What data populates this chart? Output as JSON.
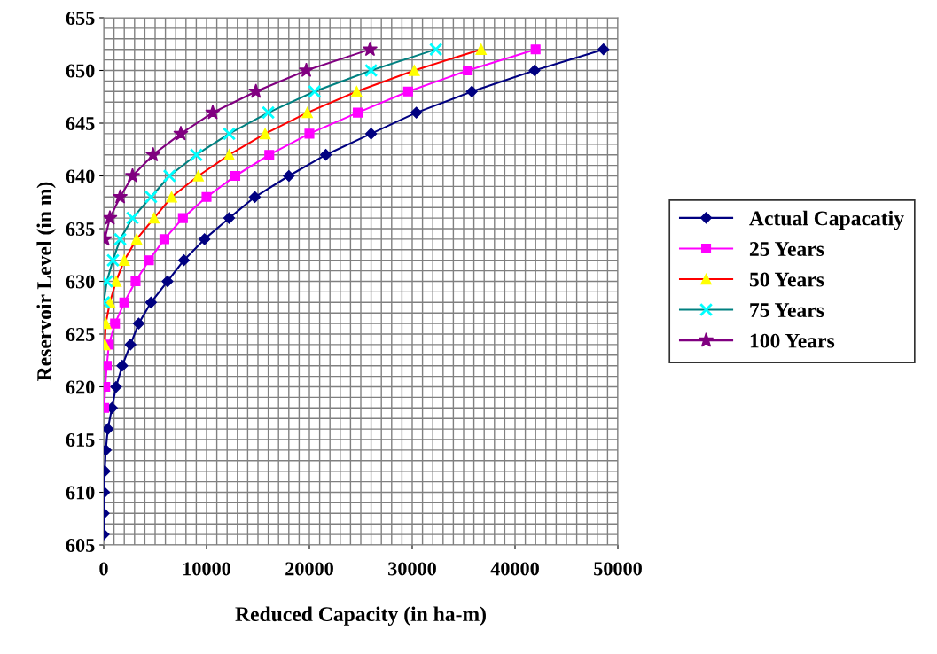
{
  "chart_data": {
    "type": "line",
    "xlabel": "Reduced Capacity (in ha-m)",
    "ylabel": "Reservoir Level (in m)",
    "xlim": [
      0,
      50000
    ],
    "ylim": [
      605,
      655
    ],
    "xticks": [
      0,
      {
        "value": 1000,
        "label": null
      },
      {
        "value": 2000,
        "label": null
      },
      {
        "value": 3000,
        "label": null
      },
      {
        "value": 4000,
        "label": null
      },
      {
        "value": 5000,
        "label": null
      },
      {
        "value": 6000,
        "label": null
      },
      {
        "value": 7000,
        "label": null
      },
      {
        "value": 8000,
        "label": null
      },
      {
        "value": 9000,
        "label": null
      },
      10000,
      {
        "value": 11000,
        "label": null
      },
      {
        "value": 12000,
        "label": null
      },
      {
        "value": 13000,
        "label": null
      },
      {
        "value": 14000,
        "label": null
      },
      {
        "value": 15000,
        "label": null
      },
      {
        "value": 16000,
        "label": null
      },
      {
        "value": 17000,
        "label": null
      },
      {
        "value": 18000,
        "label": null
      },
      {
        "value": 19000,
        "label": null
      },
      20000,
      {
        "value": 21000,
        "label": null
      },
      {
        "value": 22000,
        "label": null
      },
      {
        "value": 23000,
        "label": null
      },
      {
        "value": 24000,
        "label": null
      },
      {
        "value": 25000,
        "label": null
      },
      {
        "value": 26000,
        "label": null
      },
      {
        "value": 27000,
        "label": null
      },
      {
        "value": 28000,
        "label": null
      },
      {
        "value": 29000,
        "label": null
      },
      30000,
      {
        "value": 31000,
        "label": null
      },
      {
        "value": 32000,
        "label": null
      },
      {
        "value": 33000,
        "label": null
      },
      {
        "value": 34000,
        "label": null
      },
      {
        "value": 35000,
        "label": null
      },
      {
        "value": 36000,
        "label": null
      },
      {
        "value": 37000,
        "label": null
      },
      {
        "value": 38000,
        "label": null
      },
      {
        "value": 39000,
        "label": null
      },
      40000,
      {
        "value": 41000,
        "label": null
      },
      {
        "value": 42000,
        "label": null
      },
      {
        "value": 43000,
        "label": null
      },
      {
        "value": 44000,
        "label": null
      },
      {
        "value": 45000,
        "label": null
      },
      {
        "value": 46000,
        "label": null
      },
      {
        "value": 47000,
        "label": null
      },
      {
        "value": 48000,
        "label": null
      },
      {
        "value": 49000,
        "label": null
      },
      50000
    ],
    "yticks": [
      605,
      {
        "value": 606,
        "label": null
      },
      {
        "value": 607,
        "label": null
      },
      {
        "value": 608,
        "label": null
      },
      {
        "value": 609,
        "label": null
      },
      610,
      {
        "value": 611,
        "label": null
      },
      {
        "value": 612,
        "label": null
      },
      {
        "value": 613,
        "label": null
      },
      {
        "value": 614,
        "label": null
      },
      615,
      {
        "value": 616,
        "label": null
      },
      {
        "value": 617,
        "label": null
      },
      {
        "value": 618,
        "label": null
      },
      {
        "value": 619,
        "label": null
      },
      620,
      {
        "value": 621,
        "label": null
      },
      {
        "value": 622,
        "label": null
      },
      {
        "value": 623,
        "label": null
      },
      {
        "value": 624,
        "label": null
      },
      625,
      {
        "value": 626,
        "label": null
      },
      {
        "value": 627,
        "label": null
      },
      {
        "value": 628,
        "label": null
      },
      {
        "value": 629,
        "label": null
      },
      630,
      {
        "value": 631,
        "label": null
      },
      {
        "value": 632,
        "label": null
      },
      {
        "value": 633,
        "label": null
      },
      {
        "value": 634,
        "label": null
      },
      635,
      {
        "value": 636,
        "label": null
      },
      {
        "value": 637,
        "label": null
      },
      {
        "value": 638,
        "label": null
      },
      {
        "value": 639,
        "label": null
      },
      640,
      {
        "value": 641,
        "label": null
      },
      {
        "value": 642,
        "label": null
      },
      {
        "value": 643,
        "label": null
      },
      {
        "value": 644,
        "label": null
      },
      645,
      {
        "value": 646,
        "label": null
      },
      {
        "value": 647,
        "label": null
      },
      {
        "value": 648,
        "label": null
      },
      {
        "value": 649,
        "label": null
      },
      650,
      {
        "value": 651,
        "label": null
      },
      {
        "value": 652,
        "label": null
      },
      {
        "value": 653,
        "label": null
      },
      {
        "value": 654,
        "label": null
      },
      655
    ],
    "grid": true,
    "legend": "right",
    "line_style": "solid",
    "series": [
      {
        "name": "Actual Capacatiy",
        "color": "#000080",
        "marker": "diamond",
        "x": [
          0,
          0,
          50,
          100,
          200,
          400,
          800,
          1200,
          1800,
          2600,
          3400,
          4600,
          6200,
          7800,
          9800,
          12200,
          14700,
          18000,
          21600,
          26000,
          30400,
          35800,
          41900,
          48600
        ],
        "values": [
          606,
          608,
          610,
          612,
          614,
          616,
          618,
          620,
          622,
          624,
          626,
          628,
          630,
          632,
          634,
          636,
          638,
          640,
          642,
          644,
          646,
          648,
          650,
          652
        ]
      },
      {
        "name": "25 Years",
        "color": "#ff00ff",
        "marker": "square",
        "x": [
          50,
          150,
          300,
          500,
          1100,
          2000,
          3100,
          4400,
          5900,
          7700,
          10000,
          12800,
          16100,
          20000,
          24700,
          29600,
          35400,
          42000
        ],
        "values": [
          618,
          620,
          622,
          624,
          626,
          628,
          630,
          632,
          634,
          636,
          638,
          640,
          642,
          644,
          646,
          648,
          650,
          652
        ]
      },
      {
        "name": "50 Years",
        "color": "#ff0000",
        "marker": "triangle",
        "colors": [
          "#ffff00",
          "#ffff00",
          "#ffff00",
          "#ffff00",
          "#ffff00",
          "#ffff00",
          "#ffff00",
          "#ffff00",
          "#ffff00",
          "#ffff00",
          "#ffff00",
          "#ffff00",
          "#ffff00",
          "#ffff00",
          "#ffff00"
        ],
        "x": [
          100,
          200,
          600,
          1200,
          2000,
          3200,
          4900,
          6600,
          9200,
          12200,
          15700,
          19800,
          24600,
          30200,
          36700
        ],
        "values": [
          624,
          626,
          628,
          630,
          632,
          634,
          636,
          638,
          640,
          642,
          644,
          646,
          648,
          650,
          652
        ]
      },
      {
        "name": "75 Years",
        "color": "#008080",
        "marker": "cross",
        "colors": [
          "#00ffff",
          "#00ffff",
          "#00ffff",
          "#00ffff",
          "#00ffff",
          "#00ffff",
          "#00ffff",
          "#00ffff",
          "#00ffff",
          "#00ffff",
          "#00ffff",
          "#00ffff",
          "#00ffff"
        ],
        "x": [
          0,
          300,
          900,
          1600,
          2800,
          4600,
          6400,
          9000,
          12200,
          16000,
          20500,
          26000,
          32300
        ],
        "values": [
          628,
          630,
          632,
          634,
          636,
          638,
          640,
          642,
          644,
          646,
          648,
          650,
          652
        ]
      },
      {
        "name": "100 Years",
        "color": "#800080",
        "marker": "star",
        "x": [
          100,
          600,
          1600,
          2800,
          4800,
          7500,
          10600,
          14800,
          19700,
          25900
        ],
        "values": [
          634,
          636,
          638,
          640,
          642,
          644,
          646,
          648,
          650,
          652
        ]
      }
    ]
  }
}
